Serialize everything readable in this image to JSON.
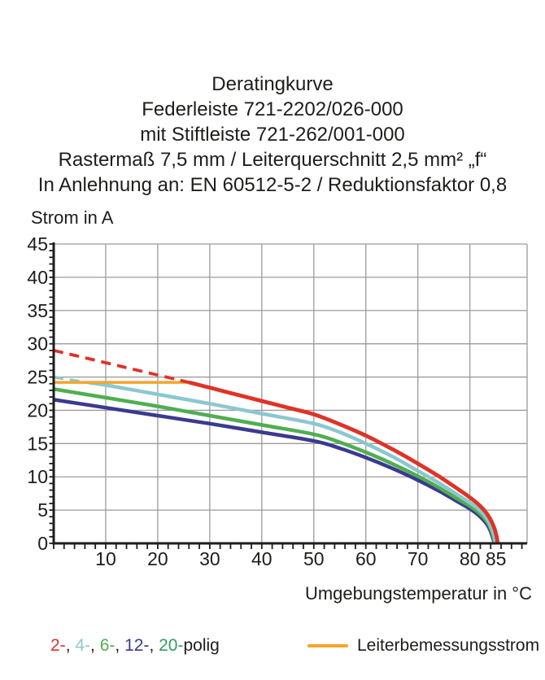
{
  "header": {
    "title_lines": [
      "Deratingkurve",
      "Federleiste 721-2202/026-000",
      "mit Stiftleiste 721-262/001-000",
      "Rastermaß 7,5 mm / Leiterquerschnitt 2,5 mm² „f“",
      "In Anlehnung an: EN 60512-5-2 / Reduktionsfaktor 0,8"
    ]
  },
  "chart_data": {
    "type": "line",
    "ylabel": "Strom in A",
    "xlabel": "Umgebungstemperatur in °C",
    "xlim": [
      0,
      91
    ],
    "ylim": [
      0,
      45
    ],
    "x_ticks": [
      10,
      20,
      30,
      40,
      50,
      60,
      70,
      80,
      85
    ],
    "y_ticks": [
      0,
      5,
      10,
      15,
      20,
      25,
      30,
      35,
      40,
      45
    ],
    "x_minor_step": 2,
    "y_minor_step": 1,
    "grid_on": true,
    "grid_color": "#9b9b9b",
    "axis_color": "#1d1d1b",
    "series": [
      {
        "name": "20-polig",
        "color": "#2f9e63",
        "width": 4,
        "dash": false,
        "points": [
          [
            0,
            21.6
          ],
          [
            10,
            20.4
          ],
          [
            20,
            19.2
          ],
          [
            30,
            18.0
          ],
          [
            40,
            16.7
          ],
          [
            50,
            15.4
          ],
          [
            55,
            14.3
          ],
          [
            60,
            12.9
          ],
          [
            65,
            11.3
          ],
          [
            70,
            9.5
          ],
          [
            74,
            7.9
          ],
          [
            78,
            6.1
          ],
          [
            80,
            5.2
          ],
          [
            82,
            4.0
          ],
          [
            83.5,
            2.6
          ],
          [
            84.3,
            1.1
          ],
          [
            84.7,
            0
          ]
        ]
      },
      {
        "name": "12-polig",
        "color": "#3a3a90",
        "width": 4.5,
        "dash": false,
        "points": [
          [
            0,
            21.6
          ],
          [
            10,
            20.4
          ],
          [
            20,
            19.2
          ],
          [
            30,
            18.0
          ],
          [
            40,
            16.7
          ],
          [
            50,
            15.4
          ],
          [
            55,
            14.3
          ],
          [
            60,
            12.9
          ],
          [
            65,
            11.3
          ],
          [
            70,
            9.5
          ],
          [
            74,
            7.9
          ],
          [
            78,
            6.1
          ],
          [
            80,
            5.2
          ],
          [
            82,
            4.0
          ],
          [
            83.5,
            2.6
          ],
          [
            84.3,
            1.1
          ],
          [
            84.7,
            0
          ]
        ]
      },
      {
        "name": "6-polig",
        "color": "#4fae51",
        "width": 4.5,
        "dash": false,
        "points": [
          [
            0,
            23.2
          ],
          [
            10,
            21.9
          ],
          [
            20,
            20.6
          ],
          [
            30,
            19.2
          ],
          [
            40,
            17.8
          ],
          [
            50,
            16.4
          ],
          [
            55,
            15.2
          ],
          [
            60,
            13.7
          ],
          [
            65,
            12.0
          ],
          [
            70,
            10.1
          ],
          [
            74,
            8.4
          ],
          [
            78,
            6.5
          ],
          [
            80,
            5.6
          ],
          [
            82,
            4.4
          ],
          [
            83.5,
            3.0
          ],
          [
            84.4,
            1.3
          ],
          [
            84.8,
            0
          ]
        ]
      },
      {
        "name": "4-polig",
        "color": "#8bc8ce",
        "width": 4.5,
        "dash": false,
        "points": [
          [
            7,
            24.1
          ],
          [
            10,
            23.8
          ],
          [
            20,
            22.4
          ],
          [
            30,
            21.0
          ],
          [
            40,
            19.5
          ],
          [
            50,
            18.0
          ],
          [
            55,
            16.7
          ],
          [
            60,
            15.0
          ],
          [
            65,
            13.1
          ],
          [
            70,
            10.9
          ],
          [
            74,
            9.1
          ],
          [
            78,
            7.1
          ],
          [
            80,
            6.1
          ],
          [
            82,
            4.9
          ],
          [
            83.5,
            3.4
          ],
          [
            84.5,
            1.6
          ],
          [
            84.9,
            0
          ]
        ]
      },
      {
        "name": "4-polig gestrichelt",
        "color": "#8bc8ce",
        "width": 3.5,
        "dash": true,
        "points": [
          [
            0,
            25.0
          ],
          [
            7,
            24.1
          ]
        ]
      },
      {
        "name": "Leiterbemessungsstrom",
        "color": "#f5a42c",
        "width": 3.5,
        "dash": false,
        "points": [
          [
            0,
            24.2
          ],
          [
            26,
            24.2
          ]
        ]
      },
      {
        "name": "2-polig gestrichelt",
        "color": "#e03227",
        "width": 3.8,
        "dash": true,
        "points": [
          [
            0,
            29.0
          ],
          [
            13,
            26.6
          ],
          [
            26,
            24.2
          ]
        ]
      },
      {
        "name": "2-polig",
        "color": "#e03227",
        "width": 4.8,
        "dash": false,
        "points": [
          [
            26,
            24.2
          ],
          [
            30,
            23.4
          ],
          [
            35,
            22.4
          ],
          [
            40,
            21.4
          ],
          [
            45,
            20.4
          ],
          [
            50,
            19.4
          ],
          [
            55,
            17.9
          ],
          [
            60,
            16.2
          ],
          [
            65,
            14.2
          ],
          [
            70,
            12.0
          ],
          [
            74,
            10.1
          ],
          [
            78,
            8.0
          ],
          [
            80,
            6.9
          ],
          [
            82,
            5.6
          ],
          [
            83.5,
            4.2
          ],
          [
            84.6,
            2.5
          ],
          [
            85.2,
            0.8
          ],
          [
            85.3,
            0
          ]
        ]
      }
    ]
  },
  "legend": {
    "pole_items": [
      {
        "label": "2-",
        "color": "#e03227"
      },
      {
        "label": "4-",
        "color": "#8bc8ce"
      },
      {
        "label": "6-",
        "color": "#4fae51"
      },
      {
        "label": "12-",
        "color": "#3a3a90"
      },
      {
        "label": "20-",
        "color": "#2f9e63"
      }
    ],
    "separator": ", ",
    "pole_suffix": "polig",
    "rated_label": "Leiterbemessungsstrom",
    "rated_color": "#f5a42c"
  }
}
